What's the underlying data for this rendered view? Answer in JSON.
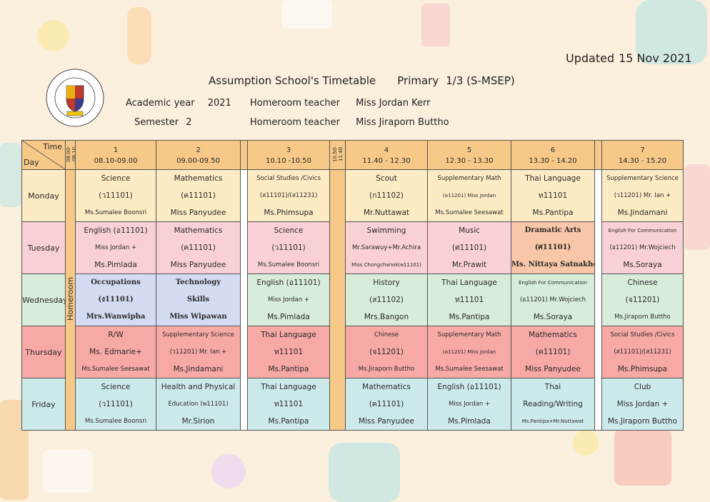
{
  "updated": {
    "label": "Updated",
    "date": "15 Nov  2021"
  },
  "title": {
    "school": "Assumption School's Timetable",
    "level": "Primary",
    "class": "1/3 (S-MSEP)"
  },
  "info": {
    "academic_year_label": "Academic year",
    "academic_year": "2021",
    "semester_label": "Semester",
    "semester": "2",
    "homeroom_label_1": "Homeroom teacher",
    "homeroom_teacher_1": "Miss Jordan  Kerr",
    "homeroom_label_2": "Homeroom teacher",
    "homeroom_teacher_2": "Miss Jiraporn  Buttho"
  },
  "logo": {
    "ring_text": "ASSUMPTION COLLEGE LAKORNRATCHASIMA - NAKHONRATCHASIMA - THAILAND"
  },
  "header": {
    "time_label": "Time",
    "day_label": "Day",
    "homeroom_time": "08.00-08.10",
    "break_time": "10.50-11.40",
    "homeroom": "Homeroom",
    "periods": [
      {
        "num": "1",
        "time": "08.10-09.00"
      },
      {
        "num": "2",
        "time": "09.00-09.50"
      },
      {
        "num": "3",
        "time": "10.10 -10.50"
      },
      {
        "num": "4",
        "time": "11.40  -  12.30"
      },
      {
        "num": "5",
        "time": "12.30  -  13.30"
      },
      {
        "num": "6",
        "time": "13.30 - 14.20"
      },
      {
        "num": "7",
        "time": "14.30 - 15.20"
      }
    ]
  },
  "days": {
    "monday": {
      "name": "Monday",
      "p1": [
        "Science",
        "(ว11101)",
        "Ms.Sumalee Boonsri"
      ],
      "p2": [
        "Mathematics",
        "(ค11101)",
        "Miss Panyudee"
      ],
      "p3": [
        "Social Studies /Civics",
        "(ส11101)/(ส11231)",
        "Ms.Phimsupa"
      ],
      "p4": [
        "Scout",
        "(ก11102)",
        "Mr.Nuttawat"
      ],
      "p5": [
        "Supplementary  Math",
        "(ค11201) Miss Jordan",
        "Ms.Sumalee  Seesawat"
      ],
      "p6": [
        "Thai Language",
        "ท11101",
        "Ms.Pantipa"
      ],
      "p7": [
        "Supplementary Science",
        "(ว11201) Mr. Ian +",
        "Ms.Jindamani"
      ]
    },
    "tuesday": {
      "name": "Tuesday",
      "p1": [
        "English (อ11101)",
        "Miss Jordan +",
        "Ms.Pimlada"
      ],
      "p2": [
        "Mathematics",
        "(ค11101)",
        "Miss Panyudee"
      ],
      "p3": [
        "Science",
        "(ว11101)",
        "Ms.Sumalee Boonsri"
      ],
      "p4": [
        "Swimming",
        "Mr.Sarawuy+Mr.Achira",
        "Miss Chongchanok(พ11101)"
      ],
      "p5": [
        "Music",
        "(ศ11101)",
        "Mr.Prawit"
      ],
      "p6": [
        "Dramatic  Arts",
        "(ศ11101)",
        "Ms.  Nittaya Satnakho"
      ],
      "p7": [
        "English For Communication",
        "(อ11201) Mr.Wojciech",
        "Ms.Soraya"
      ]
    },
    "wednesday": {
      "name": "Wednesday",
      "p1": [
        "Occupations",
        "(ง11101)",
        "Mrs.Wanwipha"
      ],
      "p2": [
        "Technology",
        "Skills",
        "Miss Wipawan"
      ],
      "p3": [
        "English (อ11101)",
        "Miss Jordan +",
        "Ms.Pimlada"
      ],
      "p4": [
        "History",
        "(ส11102)",
        "Mrs.Bangon"
      ],
      "p5": [
        "Thai Language",
        "ท11101",
        "Ms.Pantipa"
      ],
      "p6": [
        "English For Communication",
        "(อ11201) Mr.Wojciech",
        "Ms.Soraya"
      ],
      "p7": [
        "Chinese",
        "(จ11201)",
        "Ms.Jiraporn  Buttho"
      ]
    },
    "thursday": {
      "name": "Thursday",
      "p1": [
        "R/W",
        "Ms. Edmarie+",
        "Ms.Sumalee Seesawat"
      ],
      "p2": [
        "Supplementary Science",
        "(ว11201) Mr. Ian +",
        "Ms.Jindamani"
      ],
      "p3": [
        "Thai Language",
        "ท11101",
        "Ms.Pantipa"
      ],
      "p4": [
        "Chinese",
        "(จ11201)",
        "Ms.Jiraporn  Buttho"
      ],
      "p5": [
        "Supplementary  Math",
        "(ค11201) Miss Jordan",
        "Ms.Sumalee  Seesawat"
      ],
      "p6": [
        "Mathematics",
        "(ค11101)",
        "Miss Panyudee"
      ],
      "p7": [
        "Social Studies /Civics",
        "(ส11101)/(ส11231)",
        "Ms.Phimsupa"
      ]
    },
    "friday": {
      "name": "Friday",
      "p1": [
        "Science",
        "(ว11101)",
        "Ms.Sumalee Boonsri"
      ],
      "p2": [
        "Health and Physical",
        "Education (พ11101)",
        "Mr.Sirion"
      ],
      "p3": [
        "Thai Language",
        "ท11101",
        "Ms.Pantipa"
      ],
      "p4": [
        "Mathematics",
        "(ค11101)",
        "Miss Panyudee"
      ],
      "p5": [
        "English (อ11101)",
        "Miss Jordan +",
        "Ms.Pimlada"
      ],
      "p6": [
        "Thai",
        "Reading/Writing",
        "Ms.Pantipa+Mr.Nuttawat"
      ],
      "p7": [
        "Club",
        "Miss Jordan +",
        "Ms.Jiraporn  Buttho"
      ]
    }
  }
}
